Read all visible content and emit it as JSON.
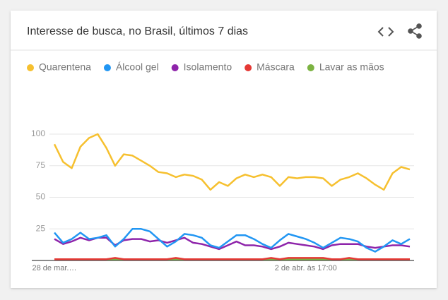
{
  "chart_data": {
    "type": "line",
    "title": "Interesse de busca, no Brasil, últimos 7 dias",
    "categories": [
      "28 de mar.…",
      null,
      null,
      null,
      null,
      null,
      null,
      null,
      null,
      null,
      null,
      null,
      null,
      null,
      null,
      null,
      null,
      null,
      null,
      null,
      null,
      null,
      null,
      null,
      null,
      null,
      null,
      null,
      null,
      "2 de abr. às 17:00",
      null,
      null,
      null,
      null,
      null,
      null,
      null,
      null,
      null,
      null,
      null,
      null
    ],
    "series": [
      {
        "name": "Quarentena",
        "color": "#f6c02f",
        "values": [
          92,
          78,
          73,
          90,
          97,
          100,
          89,
          75,
          84,
          83,
          79,
          75,
          70,
          69,
          66,
          68,
          67,
          64,
          56,
          62,
          59,
          65,
          68,
          66,
          68,
          66,
          59,
          66,
          65,
          66,
          66,
          65,
          59,
          64,
          66,
          69,
          65,
          60,
          56,
          69,
          74,
          72
        ]
      },
      {
        "name": "Álcool gel",
        "color": "#2196f3",
        "values": [
          22,
          14,
          17,
          22,
          17,
          18,
          20,
          11,
          17,
          25,
          25,
          23,
          17,
          11,
          15,
          21,
          20,
          18,
          12,
          10,
          15,
          20,
          20,
          17,
          13,
          10,
          16,
          21,
          19,
          17,
          14,
          10,
          14,
          18,
          17,
          15,
          10,
          7,
          11,
          16,
          13,
          17
        ]
      },
      {
        "name": "Isolamento",
        "color": "#8e24aa",
        "values": [
          17,
          13,
          15,
          18,
          16,
          18,
          18,
          12,
          16,
          17,
          17,
          15,
          16,
          14,
          16,
          18,
          14,
          13,
          11,
          9,
          12,
          15,
          12,
          12,
          11,
          9,
          11,
          14,
          13,
          12,
          11,
          9,
          12,
          13,
          13,
          13,
          11,
          10,
          11,
          12,
          12,
          11
        ]
      },
      {
        "name": "Máscara",
        "color": "#e53935",
        "values": [
          1,
          1,
          1,
          1,
          1,
          1,
          1,
          2,
          1,
          1,
          1,
          1,
          1,
          1,
          2,
          1,
          1,
          1,
          1,
          1,
          1,
          1,
          1,
          1,
          1,
          2,
          1,
          2,
          2,
          2,
          2,
          2,
          1,
          1,
          2,
          1,
          1,
          1,
          1,
          1,
          1,
          1
        ]
      },
      {
        "name": "Lavar as mãos",
        "color": "#7cb342",
        "values": [
          1,
          1,
          1,
          1,
          1,
          1,
          1,
          1,
          1,
          1,
          1,
          1,
          1,
          1,
          1,
          1,
          1,
          1,
          1,
          1,
          1,
          1,
          1,
          1,
          1,
          1,
          1,
          1,
          1,
          1,
          1,
          1,
          1,
          1,
          1,
          1,
          1,
          1,
          1,
          1,
          1,
          1
        ]
      }
    ],
    "ylim": [
      0,
      100
    ],
    "yticks": [
      25,
      50,
      75,
      100
    ],
    "grid": true
  }
}
